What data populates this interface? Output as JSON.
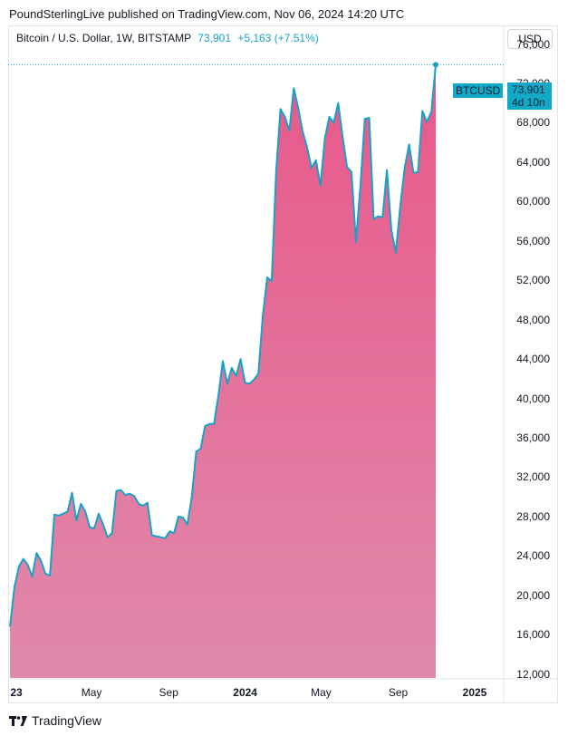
{
  "header": {
    "attribution": "PoundSterlingLive published on TradingView.com, Nov 06, 2024 14:20 UTC"
  },
  "legend": {
    "symbol": "Bitcoin / U.S. Dollar, 1W, BITSTAMP",
    "price": "73,901",
    "change": "+5,163 (+7.51%)"
  },
  "currency_button": "USD",
  "price_tag": {
    "symbol": "BTCUSD",
    "price": "73,901",
    "countdown": "4d 10n"
  },
  "brand": {
    "name": "TradingView"
  },
  "colors": {
    "line": "#1aa2c4",
    "fill_top": "#e8588a",
    "fill_bottom": "#e08aab",
    "tag": "#12a8c8"
  },
  "chart_data": {
    "type": "area",
    "title": "",
    "xlabel": "",
    "ylabel": "",
    "y_ticks": [
      "76,000",
      "72,000",
      "68,000",
      "64,000",
      "60,000",
      "56,000",
      "52,000",
      "48,000",
      "44,000",
      "40,000",
      "36,000",
      "32,000",
      "28,000",
      "24,000",
      "20,000",
      "16,000",
      "12,000"
    ],
    "x_ticks": [
      {
        "label": "23",
        "bold": true,
        "date": "2023-01-01"
      },
      {
        "label": "May",
        "bold": false,
        "date": "2023-05-01"
      },
      {
        "label": "Sep",
        "bold": false,
        "date": "2023-09-01"
      },
      {
        "label": "2024",
        "bold": true,
        "date": "2024-01-01"
      },
      {
        "label": "May",
        "bold": false,
        "date": "2024-05-01"
      },
      {
        "label": "Sep",
        "bold": false,
        "date": "2024-09-01"
      },
      {
        "label": "2025",
        "bold": true,
        "date": "2025-01-01"
      }
    ],
    "ylim": [
      11600,
      77800
    ],
    "grid": false,
    "series": [
      {
        "values": [
          16800,
          20800,
          22900,
          23700,
          23100,
          21900,
          24300,
          23500,
          22200,
          22000,
          28200,
          28100,
          28300,
          28500,
          30400,
          27600,
          29300,
          28500,
          26900,
          26800,
          28300,
          27200,
          25900,
          26300,
          30600,
          30700,
          30200,
          30300,
          30100,
          29300,
          29100,
          29400,
          26100,
          26000,
          25900,
          25800,
          26500,
          26300,
          28000,
          27900,
          27200,
          30000,
          34600,
          34900,
          37200,
          37400,
          37400,
          40300,
          43800,
          41500,
          43100,
          42300,
          44000,
          41600,
          41500,
          41900,
          42500,
          48400,
          52300,
          51900,
          63000,
          69400,
          68600,
          67200,
          71500,
          69500,
          67100,
          65500,
          63400,
          64200,
          61600,
          66400,
          68600,
          68000,
          70000,
          66600,
          63500,
          63000,
          55900,
          61500,
          68400,
          68500,
          58200,
          58500,
          58400,
          63200,
          57100,
          54800,
          59500,
          63400,
          65800,
          62900,
          63000,
          69200,
          68100,
          69100,
          73900
        ]
      }
    ]
  }
}
